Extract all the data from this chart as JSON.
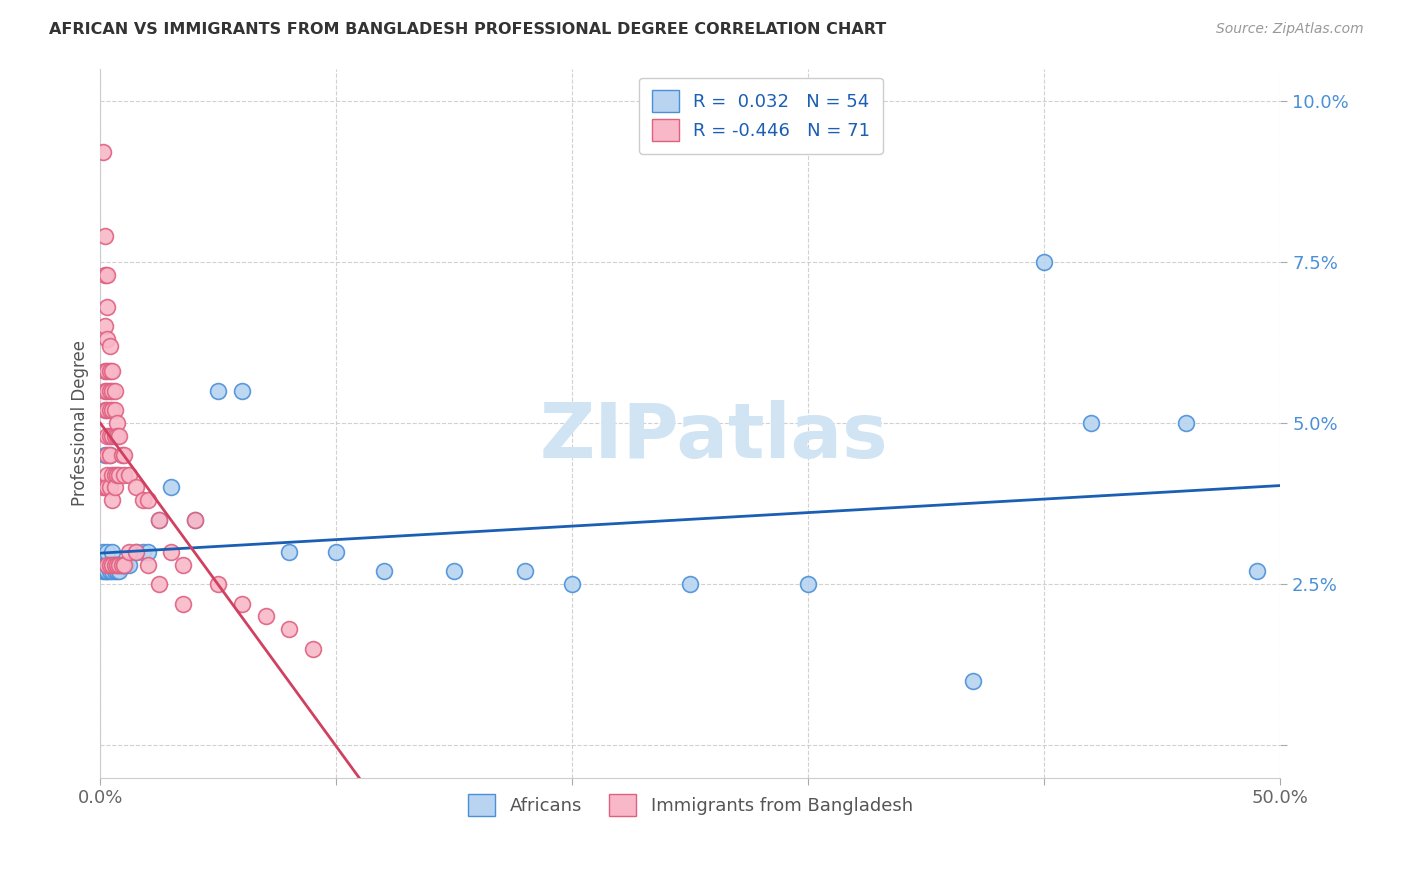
{
  "title": "AFRICAN VS IMMIGRANTS FROM BANGLADESH PROFESSIONAL DEGREE CORRELATION CHART",
  "source": "Source: ZipAtlas.com",
  "ylabel": "Professional Degree",
  "xlim": [
    0.0,
    0.5
  ],
  "ylim": [
    -0.005,
    0.105
  ],
  "yticks": [
    0.0,
    0.025,
    0.05,
    0.075,
    0.1
  ],
  "xticks": [
    0.0,
    0.1,
    0.2,
    0.3,
    0.4,
    0.5
  ],
  "blue_R": 0.032,
  "blue_N": 54,
  "pink_R": -0.446,
  "pink_N": 71,
  "legend_label_blue": "Africans",
  "legend_label_pink": "Immigrants from Bangladesh",
  "blue_fill_color": "#b8d4f0",
  "pink_fill_color": "#f8b8c8",
  "blue_edge_color": "#4a90d9",
  "pink_edge_color": "#e06080",
  "blue_line_color": "#1a5fb4",
  "pink_line_color": "#d04060",
  "watermark_color": "#d0e4f4",
  "background_color": "#ffffff",
  "grid_color": "#cccccc",
  "tick_color_y": "#4a90d9",
  "tick_color_x": "#666666",
  "title_color": "#333333",
  "source_color": "#999999",
  "blue_x": [
    0.001,
    0.001,
    0.002,
    0.002,
    0.002,
    0.002,
    0.003,
    0.003,
    0.003,
    0.003,
    0.003,
    0.003,
    0.004,
    0.004,
    0.004,
    0.004,
    0.004,
    0.005,
    0.005,
    0.005,
    0.005,
    0.006,
    0.006,
    0.006,
    0.007,
    0.007,
    0.008,
    0.008,
    0.009,
    0.01,
    0.01,
    0.011,
    0.012,
    0.015,
    0.018,
    0.02,
    0.025,
    0.03,
    0.04,
    0.05,
    0.06,
    0.08,
    0.1,
    0.12,
    0.15,
    0.18,
    0.2,
    0.25,
    0.3,
    0.37,
    0.4,
    0.42,
    0.46,
    0.49
  ],
  "blue_y": [
    0.027,
    0.03,
    0.028,
    0.028,
    0.027,
    0.045,
    0.028,
    0.028,
    0.027,
    0.027,
    0.028,
    0.03,
    0.027,
    0.028,
    0.028,
    0.045,
    0.028,
    0.027,
    0.028,
    0.028,
    0.03,
    0.027,
    0.028,
    0.028,
    0.027,
    0.028,
    0.027,
    0.028,
    0.028,
    0.028,
    0.028,
    0.028,
    0.028,
    0.03,
    0.03,
    0.03,
    0.035,
    0.04,
    0.035,
    0.055,
    0.055,
    0.03,
    0.03,
    0.027,
    0.027,
    0.027,
    0.025,
    0.025,
    0.025,
    0.01,
    0.075,
    0.05,
    0.05,
    0.027
  ],
  "pink_x": [
    0.001,
    0.001,
    0.002,
    0.002,
    0.002,
    0.002,
    0.002,
    0.002,
    0.002,
    0.003,
    0.003,
    0.003,
    0.003,
    0.003,
    0.003,
    0.003,
    0.003,
    0.003,
    0.003,
    0.003,
    0.004,
    0.004,
    0.004,
    0.004,
    0.004,
    0.004,
    0.004,
    0.004,
    0.005,
    0.005,
    0.005,
    0.005,
    0.005,
    0.005,
    0.005,
    0.006,
    0.006,
    0.006,
    0.006,
    0.006,
    0.006,
    0.007,
    0.007,
    0.007,
    0.007,
    0.008,
    0.008,
    0.008,
    0.009,
    0.009,
    0.01,
    0.01,
    0.01,
    0.012,
    0.012,
    0.015,
    0.015,
    0.018,
    0.02,
    0.02,
    0.025,
    0.025,
    0.03,
    0.035,
    0.035,
    0.04,
    0.05,
    0.06,
    0.07,
    0.08,
    0.09
  ],
  "pink_y": [
    0.092,
    0.04,
    0.079,
    0.073,
    0.065,
    0.058,
    0.055,
    0.052,
    0.04,
    0.073,
    0.068,
    0.063,
    0.058,
    0.055,
    0.052,
    0.048,
    0.045,
    0.042,
    0.04,
    0.028,
    0.062,
    0.058,
    0.055,
    0.052,
    0.048,
    0.045,
    0.04,
    0.028,
    0.058,
    0.055,
    0.052,
    0.048,
    0.042,
    0.038,
    0.028,
    0.055,
    0.052,
    0.048,
    0.042,
    0.04,
    0.028,
    0.05,
    0.048,
    0.042,
    0.028,
    0.048,
    0.042,
    0.028,
    0.045,
    0.028,
    0.045,
    0.042,
    0.028,
    0.042,
    0.03,
    0.04,
    0.03,
    0.038,
    0.038,
    0.028,
    0.035,
    0.025,
    0.03,
    0.028,
    0.022,
    0.035,
    0.025,
    0.022,
    0.02,
    0.018,
    0.015
  ]
}
